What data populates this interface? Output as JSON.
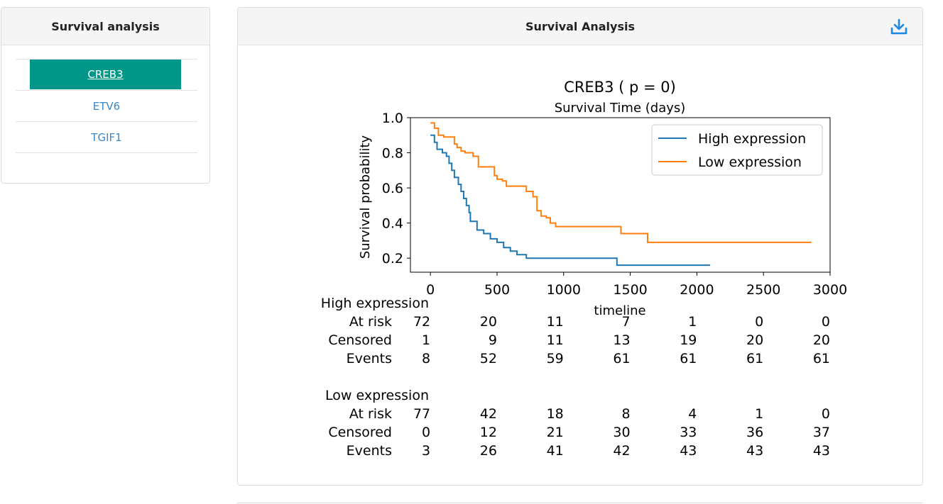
{
  "sidebar": {
    "title": "Survival analysis",
    "genes": [
      "CREB3",
      "ETV6",
      "TGIF1"
    ],
    "active_index": 0
  },
  "main": {
    "title": "Survival Analysis",
    "download_icon": "download-icon",
    "accent_color": "#1e88e5"
  },
  "chart_data": {
    "type": "line",
    "title": "CREB3 ( p = 0)",
    "subtitle": "Survival Time (days)",
    "xlabel": "timeline",
    "ylabel": "Survival probability",
    "xlim": [
      -150,
      3000
    ],
    "ylim": [
      0.12,
      1.0
    ],
    "xticks": [
      0,
      500,
      1000,
      1500,
      2000,
      2500,
      3000
    ],
    "yticks": [
      0.2,
      0.4,
      0.6,
      0.8,
      1.0
    ],
    "ytick_labels": [
      "0.2",
      "0.4",
      "0.6",
      "0.8",
      "1.0"
    ],
    "legend_position": "top-right",
    "series": [
      {
        "name": "High expression",
        "color": "#1f77b4",
        "points": [
          [
            0,
            0.9
          ],
          [
            30,
            0.9
          ],
          [
            30,
            0.86
          ],
          [
            50,
            0.86
          ],
          [
            50,
            0.82
          ],
          [
            90,
            0.82
          ],
          [
            90,
            0.8
          ],
          [
            120,
            0.8
          ],
          [
            120,
            0.78
          ],
          [
            140,
            0.78
          ],
          [
            140,
            0.74
          ],
          [
            160,
            0.74
          ],
          [
            160,
            0.7
          ],
          [
            180,
            0.7
          ],
          [
            180,
            0.66
          ],
          [
            210,
            0.66
          ],
          [
            210,
            0.62
          ],
          [
            230,
            0.62
          ],
          [
            230,
            0.58
          ],
          [
            250,
            0.58
          ],
          [
            250,
            0.54
          ],
          [
            270,
            0.54
          ],
          [
            270,
            0.5
          ],
          [
            290,
            0.5
          ],
          [
            290,
            0.46
          ],
          [
            300,
            0.46
          ],
          [
            300,
            0.41
          ],
          [
            350,
            0.41
          ],
          [
            350,
            0.36
          ],
          [
            400,
            0.36
          ],
          [
            400,
            0.34
          ],
          [
            450,
            0.34
          ],
          [
            450,
            0.31
          ],
          [
            500,
            0.31
          ],
          [
            500,
            0.29
          ],
          [
            550,
            0.29
          ],
          [
            550,
            0.26
          ],
          [
            600,
            0.26
          ],
          [
            600,
            0.24
          ],
          [
            650,
            0.24
          ],
          [
            650,
            0.22
          ],
          [
            720,
            0.22
          ],
          [
            720,
            0.2
          ],
          [
            1400,
            0.2
          ],
          [
            1400,
            0.16
          ],
          [
            2100,
            0.16
          ]
        ]
      },
      {
        "name": "Low expression",
        "color": "#ff7f0e",
        "points": [
          [
            0,
            0.97
          ],
          [
            30,
            0.97
          ],
          [
            30,
            0.94
          ],
          [
            60,
            0.94
          ],
          [
            60,
            0.9
          ],
          [
            100,
            0.9
          ],
          [
            100,
            0.89
          ],
          [
            180,
            0.89
          ],
          [
            180,
            0.85
          ],
          [
            200,
            0.85
          ],
          [
            200,
            0.83
          ],
          [
            230,
            0.83
          ],
          [
            230,
            0.81
          ],
          [
            260,
            0.81
          ],
          [
            260,
            0.8
          ],
          [
            320,
            0.8
          ],
          [
            320,
            0.78
          ],
          [
            360,
            0.78
          ],
          [
            360,
            0.72
          ],
          [
            480,
            0.72
          ],
          [
            480,
            0.67
          ],
          [
            500,
            0.67
          ],
          [
            500,
            0.65
          ],
          [
            540,
            0.65
          ],
          [
            540,
            0.64
          ],
          [
            570,
            0.64
          ],
          [
            570,
            0.61
          ],
          [
            720,
            0.61
          ],
          [
            720,
            0.58
          ],
          [
            770,
            0.58
          ],
          [
            770,
            0.55
          ],
          [
            800,
            0.55
          ],
          [
            800,
            0.47
          ],
          [
            830,
            0.47
          ],
          [
            830,
            0.44
          ],
          [
            870,
            0.44
          ],
          [
            870,
            0.43
          ],
          [
            900,
            0.43
          ],
          [
            900,
            0.4
          ],
          [
            940,
            0.4
          ],
          [
            940,
            0.38
          ],
          [
            1430,
            0.38
          ],
          [
            1430,
            0.34
          ],
          [
            1630,
            0.34
          ],
          [
            1630,
            0.29
          ],
          [
            2860,
            0.29
          ]
        ]
      }
    ],
    "risk_table": {
      "time_points": [
        0,
        500,
        1000,
        1500,
        2000,
        2500,
        3000
      ],
      "groups": [
        {
          "name": "High expression",
          "rows": [
            {
              "label": "At risk",
              "values": [
                "72",
                "20",
                "11",
                "7",
                "1",
                "0",
                "0"
              ]
            },
            {
              "label": "Censored",
              "values": [
                "1",
                "9",
                "11",
                "13",
                "19",
                "20",
                "20"
              ]
            },
            {
              "label": "Events",
              "values": [
                "8",
                "52",
                "59",
                "61",
                "61",
                "61",
                "61"
              ]
            }
          ]
        },
        {
          "name": "Low expression",
          "rows": [
            {
              "label": "At risk",
              "values": [
                "77",
                "42",
                "18",
                "8",
                "4",
                "1",
                "0"
              ]
            },
            {
              "label": "Censored",
              "values": [
                "0",
                "12",
                "21",
                "30",
                "33",
                "36",
                "37"
              ]
            },
            {
              "label": "Events",
              "values": [
                "3",
                "26",
                "41",
                "42",
                "43",
                "43",
                "43"
              ]
            }
          ]
        }
      ]
    }
  }
}
